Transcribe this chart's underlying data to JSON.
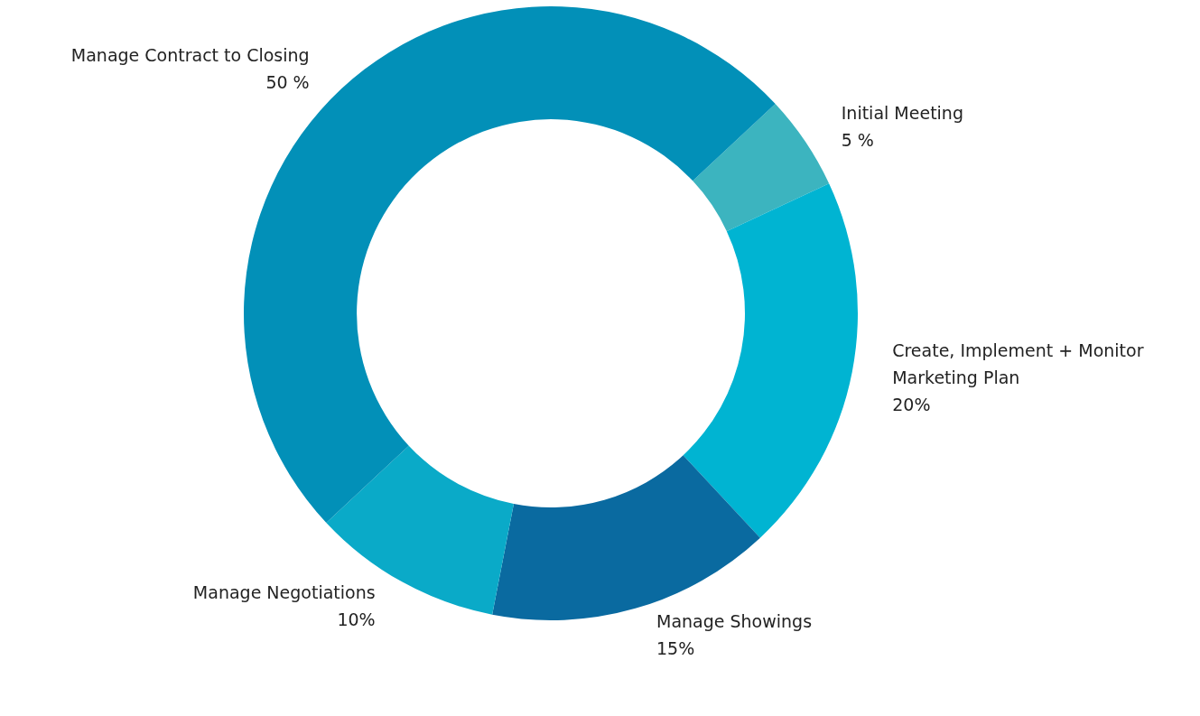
{
  "chart_data": {
    "type": "donut",
    "categories": [
      "Initial Meeting",
      "Create, Implement + Monitor\nMarketing Plan",
      "Manage Showings",
      "Manage Negotiations",
      "Manage Contract to Closing"
    ],
    "values": [
      5,
      20,
      15,
      10,
      50
    ],
    "colors": [
      "#3cb4bf",
      "#00b4d2",
      "#0a6aa0",
      "#0aaac8",
      "#0290b8"
    ],
    "value_labels": [
      "5 %",
      "20%",
      "15%",
      "10%",
      "50 %"
    ],
    "legend": false
  }
}
